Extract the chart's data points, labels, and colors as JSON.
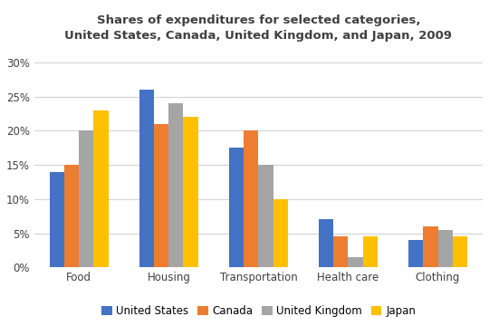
{
  "title": "Shares of expenditures for selected categories,\nUnited States, Canada, United Kingdom, and Japan, 2009",
  "categories": [
    "Food",
    "Housing",
    "Transportation",
    "Health care",
    "Clothing"
  ],
  "countries": [
    "United States",
    "Canada",
    "United Kingdom",
    "Japan"
  ],
  "values": {
    "United States": [
      14,
      26,
      17.5,
      7,
      4
    ],
    "Canada": [
      15,
      21,
      20,
      4.5,
      6
    ],
    "United Kingdom": [
      20,
      24,
      15,
      1.5,
      5.5
    ],
    "Japan": [
      23,
      22,
      10,
      4.5,
      4.5
    ]
  },
  "colors": {
    "United States": "#4472C4",
    "Canada": "#ED7D31",
    "United Kingdom": "#A5A5A5",
    "Japan": "#FFC000"
  },
  "ylim": [
    0,
    32
  ],
  "yticks": [
    0,
    5,
    10,
    15,
    20,
    25,
    30
  ],
  "ytick_labels": [
    "0%",
    "5%",
    "10%",
    "15%",
    "20%",
    "25%",
    "30%"
  ],
  "title_fontsize": 9.5,
  "tick_fontsize": 8.5,
  "legend_fontsize": 8.5,
  "background_color": "#ffffff",
  "grid_color": "#d3d3d3"
}
